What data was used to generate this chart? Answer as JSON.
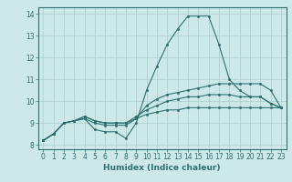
{
  "xlabel": "Humidex (Indice chaleur)",
  "ylabel": "",
  "xlim": [
    -0.5,
    23.5
  ],
  "ylim": [
    7.8,
    14.3
  ],
  "xticks": [
    0,
    1,
    2,
    3,
    4,
    5,
    6,
    7,
    8,
    9,
    10,
    11,
    12,
    13,
    14,
    15,
    16,
    17,
    18,
    19,
    20,
    21,
    22,
    23
  ],
  "yticks": [
    8,
    9,
    10,
    11,
    12,
    13,
    14
  ],
  "background_color": "#cde8e8",
  "line_color": "#2e7070",
  "grid_color": "#aacece",
  "lines": [
    [
      8.2,
      8.5,
      9.0,
      9.1,
      9.2,
      8.7,
      8.6,
      8.6,
      8.3,
      9.0,
      10.5,
      11.6,
      12.6,
      13.3,
      13.9,
      13.9,
      13.9,
      12.6,
      11.0,
      10.5,
      10.2,
      10.2,
      9.9,
      9.7
    ],
    [
      8.2,
      8.5,
      9.0,
      9.1,
      9.2,
      9.0,
      8.9,
      8.9,
      8.9,
      9.2,
      9.8,
      10.1,
      10.3,
      10.4,
      10.5,
      10.6,
      10.7,
      10.8,
      10.8,
      10.8,
      10.8,
      10.8,
      10.5,
      9.7
    ],
    [
      8.2,
      8.5,
      9.0,
      9.1,
      9.3,
      9.1,
      9.0,
      9.0,
      9.0,
      9.3,
      9.6,
      9.8,
      10.0,
      10.1,
      10.2,
      10.2,
      10.3,
      10.3,
      10.3,
      10.2,
      10.2,
      10.2,
      9.9,
      9.7
    ],
    [
      8.2,
      8.5,
      9.0,
      9.1,
      9.3,
      9.1,
      9.0,
      9.0,
      9.0,
      9.2,
      9.4,
      9.5,
      9.6,
      9.6,
      9.7,
      9.7,
      9.7,
      9.7,
      9.7,
      9.7,
      9.7,
      9.7,
      9.7,
      9.7
    ]
  ]
}
